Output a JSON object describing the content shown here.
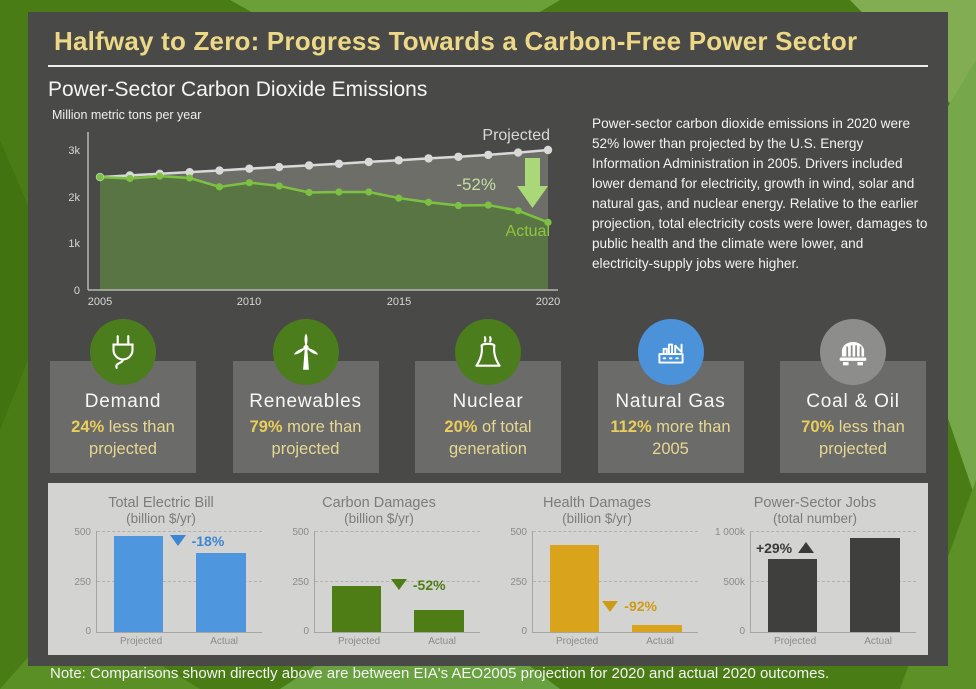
{
  "header": {
    "title": "Halfway to Zero: Progress Towards a Carbon-Free Power Sector"
  },
  "subtitle": "Power-Sector Carbon Dioxide Emissions",
  "description": "Power-sector carbon dioxide emissions in 2020 were 52% lower than projected by the U.S. Energy Information Administration in 2005. Drivers included lower demand for electricity, growth in wind, solar and natural gas, and nuclear energy. Relative to the earlier projection, total electricity costs were lower, damages to public health and the climate were lower, and electricity-supply jobs were higher.",
  "note": "Note: Comparisons shown directly above are between EIA's AEO2005 projection for 2020 and actual 2020 outcomes.",
  "colors": {
    "panel": "#494947",
    "title_yellow": "#ecd887",
    "actual_green": "#7dc142",
    "projected_gray": "#d9d9d9",
    "stat_green_circle": "#4c7d1d",
    "stat_blue_circle": "#4b92d8",
    "stat_gray_circle": "#8d8d8b"
  },
  "stats": [
    {
      "label": "Demand",
      "value": "24%",
      "rest": " less than projected",
      "icon": "plug-icon",
      "circle_color": "#4c7d1d"
    },
    {
      "label": "Renewables",
      "value": "79%",
      "rest": " more than projected",
      "icon": "wind-turbine-icon",
      "circle_color": "#4c7d1d"
    },
    {
      "label": "Nuclear",
      "value": "20%",
      "rest": " of total generation",
      "icon": "cooling-tower-icon",
      "circle_color": "#4c7d1d"
    },
    {
      "label": "Natural Gas",
      "value": "112%",
      "rest": " more than 2005",
      "icon": "factory-icon",
      "circle_color": "#4b92d8"
    },
    {
      "label": "Coal & Oil",
      "value": "70%",
      "rest": " less than projected",
      "icon": "coal-car-icon",
      "circle_color": "#8d8d8b"
    }
  ],
  "chart_data": [
    {
      "type": "line",
      "title": "Power-Sector Carbon Dioxide Emissions",
      "ylabel": "Million metric tons per year",
      "x": [
        2005,
        2006,
        2007,
        2008,
        2009,
        2010,
        2011,
        2012,
        2013,
        2014,
        2015,
        2016,
        2017,
        2018,
        2019,
        2020
      ],
      "xticks": [
        "2005",
        "2010",
        "2015",
        "2020"
      ],
      "yticks": [
        "3k",
        "2k",
        "1k",
        "0"
      ],
      "ylim": [
        0,
        3000
      ],
      "grid": false,
      "legend_position": "labels-at-line-ends",
      "series": [
        {
          "name": "Projected",
          "color": "#d9d9d9",
          "values": [
            2420,
            2455,
            2490,
            2525,
            2560,
            2600,
            2635,
            2670,
            2705,
            2745,
            2780,
            2820,
            2855,
            2895,
            2945,
            3000
          ]
        },
        {
          "name": "Actual",
          "color": "#7dc142",
          "values": [
            2420,
            2390,
            2440,
            2400,
            2210,
            2300,
            2230,
            2090,
            2100,
            2100,
            1970,
            1880,
            1810,
            1820,
            1700,
            1450
          ]
        }
      ],
      "annotation": "-52%"
    },
    {
      "type": "bar",
      "title": "Total Electric Bill",
      "subtitle": "(billion $/yr)",
      "categories": [
        "Projected",
        "Actual"
      ],
      "values": [
        475,
        390
      ],
      "yticks": [
        "500",
        "250",
        "0"
      ],
      "ylim": [
        0,
        500
      ],
      "change": "-18%",
      "bar_color": "#4e96dd",
      "annotation_color": "#3c86d4"
    },
    {
      "type": "bar",
      "title": "Carbon Damages",
      "subtitle": "(billion $/yr)",
      "categories": [
        "Projected",
        "Actual"
      ],
      "values": [
        225,
        108
      ],
      "yticks": [
        "500",
        "250",
        "0"
      ],
      "ylim": [
        0,
        500
      ],
      "change": "-52%",
      "bar_color": "#4e7d15",
      "annotation_color": "#4e7d15"
    },
    {
      "type": "bar",
      "title": "Health Damages",
      "subtitle": "(billion $/yr)",
      "categories": [
        "Projected",
        "Actual"
      ],
      "values": [
        430,
        34
      ],
      "yticks": [
        "500",
        "250",
        "0"
      ],
      "ylim": [
        0,
        500
      ],
      "change": "-92%",
      "bar_color": "#d9a31c",
      "annotation_color": "#cf9a14"
    },
    {
      "type": "bar",
      "title": "Power-Sector Jobs",
      "subtitle": "(total number)",
      "categories": [
        "Projected",
        "Actual"
      ],
      "values": [
        720000,
        930000
      ],
      "yticks": [
        "1 000k",
        "500k",
        "0"
      ],
      "ylim": [
        0,
        1000000
      ],
      "change": "+29%",
      "bar_color": "#3f3f3d",
      "annotation_color": "#3a3a38"
    }
  ]
}
